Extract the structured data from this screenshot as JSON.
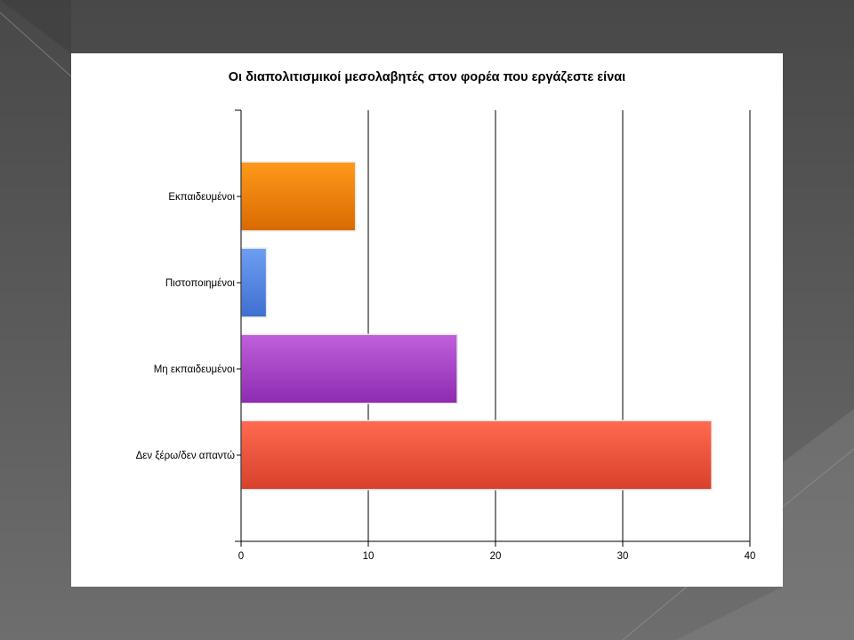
{
  "chart_data": {
    "type": "bar",
    "orientation": "horizontal",
    "title": "Οι διαπολιτισμικοί μεσολαβητές στον φορέα που εργάζεστε είναι",
    "categories": [
      "Εκπαιδευμένοι",
      "Πιστοποιημένοι",
      "Μη εκπαιδευμένοι",
      "Δεν ξέρω/δεν απαντώ"
    ],
    "values": [
      9,
      2,
      17,
      37
    ],
    "xlim": [
      0,
      40
    ],
    "x_ticks": [
      0,
      10,
      20,
      30,
      40
    ],
    "xlabel": "",
    "ylabel": "",
    "grid": "vertical",
    "colors": [
      {
        "top": "#ff9a1a",
        "bottom": "#d96a00"
      },
      {
        "top": "#6c9ff2",
        "bottom": "#3f6fd0"
      },
      {
        "top": "#c060dc",
        "bottom": "#8e2bb0"
      },
      {
        "top": "#ff6a50",
        "bottom": "#d8402a"
      }
    ]
  }
}
